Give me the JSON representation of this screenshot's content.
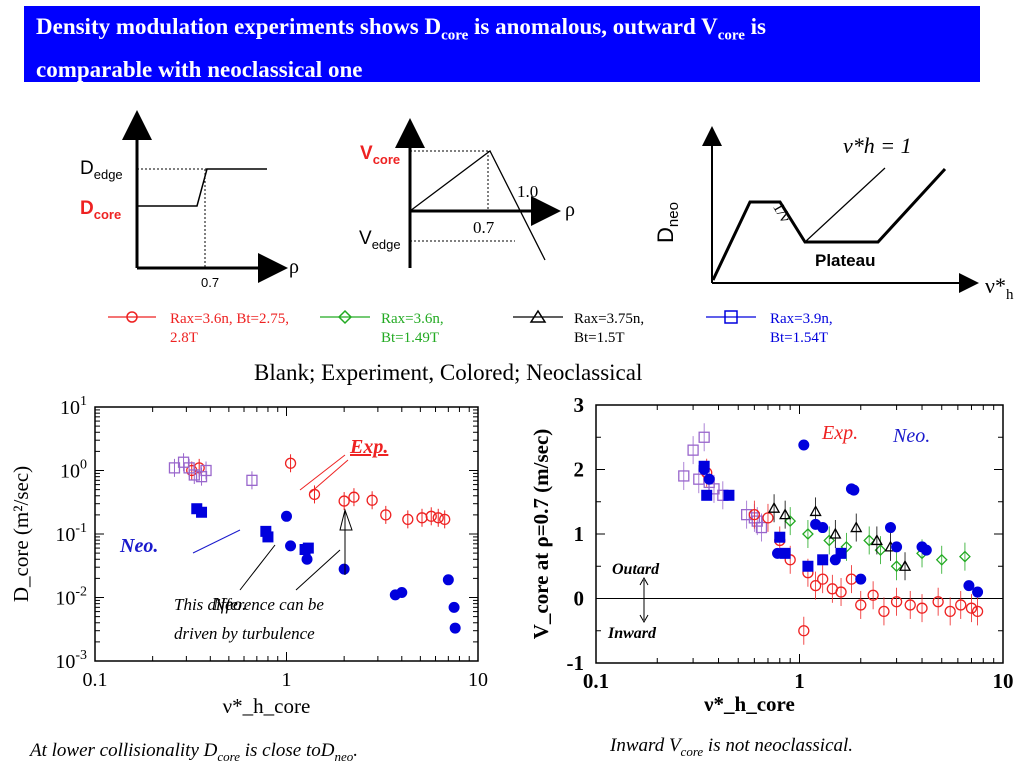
{
  "header": {
    "title_line1_a": "Density modulation experiments shows D",
    "title_line1_sub1": "core",
    "title_line1_b": " is anomalous, outward V",
    "title_line1_sub2": "core",
    "title_line1_c": " is",
    "title_line2": "comparable with neoclassical one"
  },
  "colors": {
    "title_bg": "#0000ff",
    "red": "#ee2222",
    "green": "#22aa22",
    "blue": "#0000dd",
    "purple": "#9966cc",
    "navy": "#1a1acc"
  },
  "sketches": {
    "d_edge": "D",
    "d_edge_sub": "edge",
    "d_core": "D",
    "d_core_sub": "core",
    "tick_07": "0.7",
    "rho": "ρ",
    "v_core": "V",
    "v_core_sub": "core",
    "v_edge": "V",
    "v_edge_sub": "edge",
    "tick_10": "1.0",
    "tick_07b": "0.7",
    "rho2": "ρ",
    "d_neo": "D",
    "d_neo_sub": "neo",
    "nu_h_eq": "ν*h = 1",
    "inv_nu": "1/ν",
    "plateau": "Plateau",
    "nu_axis": "ν*",
    "nu_axis_sub": "h"
  },
  "legend": [
    {
      "line1": "Rax=3.6n, Bt=2.75,",
      "line2": "2.8T",
      "marker": "circle",
      "color": "#ee2222"
    },
    {
      "line1": "Rax=3.6n,",
      "line2": "Bt=1.49T",
      "marker": "diamond",
      "color": "#22aa22"
    },
    {
      "line1": "Rax=3.75n,",
      "line2": "Bt=1.5T",
      "marker": "triangle",
      "color": "#000000"
    },
    {
      "line1": "Rax=3.9n,",
      "line2": "Bt=1.54T",
      "marker": "square",
      "color": "#0000dd"
    }
  ],
  "note": "Blank; Experiment, Colored; Neoclassical",
  "captions": {
    "left_a": "At lower collisionality D",
    "left_sub1": "core",
    "left_b": " is close toD",
    "left_sub2": "neo",
    "left_c": ".",
    "right_a": "Inward V",
    "right_sub": "core",
    "right_b": " is not neoclassical."
  },
  "chart_data": [
    {
      "type": "scatter",
      "xlog": true,
      "ylog": true,
      "xlim": [
        0.1,
        10
      ],
      "ylim": [
        0.001,
        10
      ],
      "ylabel": "D_core (m²/sec)",
      "xlabel": "ν*_h_core",
      "x_ticks": [
        "0.1",
        "1",
        "10"
      ],
      "y_ticks": [
        "10^-3",
        "10^-2",
        "10^-1",
        "10^0",
        "10^1"
      ],
      "annotations": {
        "exp": "Exp.",
        "neo": "Neo.",
        "neo2": "Neo.",
        "turb1": "This difference can be",
        "turb2": "driven by turbulence"
      },
      "series": [
        {
          "color": "#ee2222",
          "marker": "circle-open",
          "x": [
            0.32,
            0.35,
            1.05,
            1.4,
            2.0,
            2.25,
            2.8,
            3.3,
            4.3,
            5.1,
            5.7,
            6.2,
            6.7
          ],
          "y": [
            1.0,
            1.1,
            1.3,
            0.42,
            0.33,
            0.38,
            0.34,
            0.2,
            0.17,
            0.18,
            0.19,
            0.18,
            0.17
          ]
        },
        {
          "color": "#9966cc",
          "marker": "square-open",
          "x": [
            0.26,
            0.29,
            0.31,
            0.33,
            0.36,
            0.38,
            0.66
          ],
          "y": [
            1.1,
            1.35,
            1.1,
            0.85,
            0.8,
            1.0,
            0.7
          ]
        },
        {
          "color": "#0000dd",
          "marker": "square-filled",
          "x": [
            0.34,
            0.36,
            0.78,
            0.8,
            1.25,
            1.3
          ],
          "y": [
            0.25,
            0.22,
            0.11,
            0.09,
            0.057,
            0.06
          ]
        },
        {
          "color": "#0000dd",
          "marker": "circle-filled",
          "x": [
            1.0,
            1.05,
            1.28,
            2.0,
            3.7,
            4.0,
            7.0,
            7.5,
            7.6
          ],
          "y": [
            0.19,
            0.065,
            0.04,
            0.028,
            0.011,
            0.012,
            0.019,
            0.007,
            0.0033
          ]
        }
      ]
    },
    {
      "type": "scatter",
      "xlog": true,
      "xlim": [
        0.1,
        10
      ],
      "ylim": [
        -1,
        3
      ],
      "ylabel": "V_core at ρ=0.7 (m/sec)",
      "xlabel": "ν*_h_core",
      "x_ticks": [
        "0.1",
        "1",
        "10"
      ],
      "y_ticks": [
        "-1",
        "0",
        "1",
        "2",
        "3"
      ],
      "annotations": {
        "exp": "Exp.",
        "neo": "Neo.",
        "outward": "Outard",
        "inward": "Inward"
      },
      "series": [
        {
          "color": "#9966cc",
          "marker": "square-open",
          "x": [
            0.27,
            0.3,
            0.32,
            0.34,
            0.36,
            0.38,
            0.42,
            0.55,
            0.6,
            0.62,
            0.65
          ],
          "y": [
            1.9,
            2.3,
            1.85,
            2.5,
            1.8,
            1.7,
            1.6,
            1.3,
            1.25,
            1.2,
            1.1
          ]
        },
        {
          "color": "#ee2222",
          "marker": "circle-open",
          "x": [
            0.35,
            0.6,
            0.7,
            0.8,
            0.9,
            1.05,
            1.1,
            1.2,
            1.3,
            1.45,
            1.6,
            1.8,
            2.0,
            2.3,
            2.6,
            3.0,
            3.5,
            4.0,
            4.8,
            5.5,
            6.2,
            7.0,
            7.5
          ],
          "y": [
            1.95,
            1.3,
            1.25,
            0.9,
            0.6,
            -0.5,
            0.4,
            0.2,
            0.3,
            0.15,
            0.1,
            0.3,
            -0.1,
            0.05,
            -0.2,
            -0.05,
            -0.1,
            -0.15,
            -0.05,
            -0.2,
            -0.1,
            -0.15,
            -0.2
          ]
        },
        {
          "color": "#22aa22",
          "marker": "diamond-open",
          "x": [
            0.9,
            1.1,
            1.4,
            1.7,
            2.2,
            2.5,
            3.0,
            4.0,
            5.0,
            6.5
          ],
          "y": [
            1.2,
            1.0,
            0.9,
            0.8,
            0.9,
            0.75,
            0.5,
            0.7,
            0.6,
            0.65
          ]
        },
        {
          "color": "#000000",
          "marker": "triangle-open",
          "x": [
            0.75,
            0.85,
            1.2,
            1.5,
            1.9,
            2.4,
            2.8,
            3.3
          ],
          "y": [
            1.4,
            1.3,
            1.35,
            1.0,
            1.1,
            0.9,
            0.8,
            0.5
          ]
        },
        {
          "color": "#0000dd",
          "marker": "circle-filled",
          "x": [
            0.34,
            0.36,
            1.05,
            1.2,
            1.5,
            1.8,
            1.85,
            2.0,
            2.8,
            3.0,
            4.0,
            4.2,
            6.8,
            7.5,
            0.78,
            1.3
          ],
          "y": [
            2.0,
            1.85,
            2.38,
            1.15,
            0.6,
            1.7,
            1.68,
            0.3,
            1.1,
            0.8,
            0.8,
            0.75,
            0.2,
            0.1,
            0.7,
            1.1
          ]
        },
        {
          "color": "#0000dd",
          "marker": "square-filled",
          "x": [
            0.34,
            0.35,
            0.45,
            0.8,
            0.85,
            1.1,
            1.3,
            1.6
          ],
          "y": [
            2.05,
            1.6,
            1.6,
            0.95,
            0.7,
            0.5,
            0.6,
            0.7
          ]
        }
      ]
    }
  ]
}
